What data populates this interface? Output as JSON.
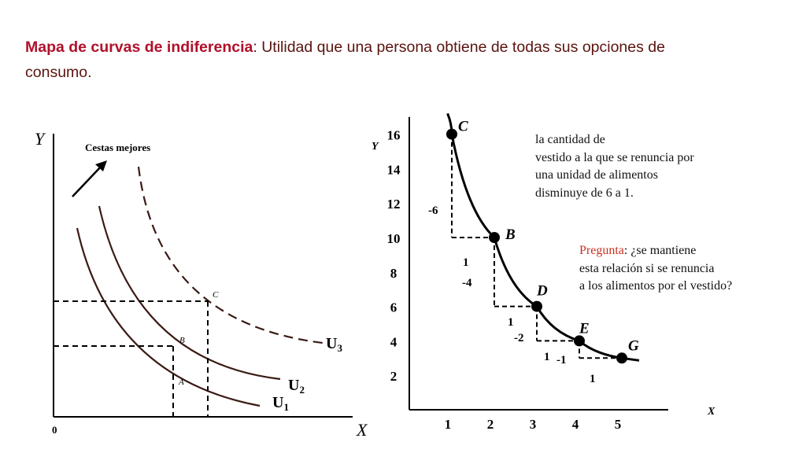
{
  "heading": {
    "highlight": "Mapa de curvas de indiferencia",
    "rest": ": Utilidad que una persona obtiene de todas sus opciones de consumo."
  },
  "left_chart": {
    "y_axis": "Y",
    "x_axis": "X",
    "origin": "0",
    "arrow_label": "Cestas mejores",
    "points": [
      "A",
      "B",
      "C"
    ],
    "curves": [
      "U",
      "U",
      "U"
    ],
    "curve_subscripts": [
      "1",
      "2",
      "3"
    ]
  },
  "chart_data": {
    "type": "line",
    "xlabel": "X",
    "ylabel": "Y",
    "x_ticks": [
      "1",
      "2",
      "3",
      "4",
      "5"
    ],
    "y_ticks": [
      "2",
      "4",
      "6",
      "8",
      "10",
      "12",
      "14",
      "16"
    ],
    "xlim": [
      0,
      5.5
    ],
    "ylim": [
      0,
      17
    ],
    "series": [
      {
        "points": [
          {
            "label": "C",
            "x": 1,
            "y": 16
          },
          {
            "label": "B",
            "x": 2,
            "y": 10
          },
          {
            "label": "D",
            "x": 3,
            "y": 6
          },
          {
            "label": "E",
            "x": 4,
            "y": 4
          },
          {
            "label": "G",
            "x": 5,
            "y": 3
          }
        ]
      }
    ],
    "steps": [
      {
        "dx": "1",
        "dy": "-6"
      },
      {
        "dx": "1",
        "dy": "-4"
      },
      {
        "dx": "1",
        "dy": "-2"
      },
      {
        "dx": "1",
        "dy": "-1"
      }
    ]
  },
  "notes": {
    "line1": "la cantidad de",
    "line2": "vestido a la que se renuncia por",
    "line3": "una unidad de alimentos",
    "line4": "disminuye de 6 a 1.",
    "question_label": "Pregunta",
    "question_line1": ": ¿se mantiene",
    "question_line2": "esta relación si se renuncia",
    "question_line3": "a los alimentos por el vestido?"
  }
}
